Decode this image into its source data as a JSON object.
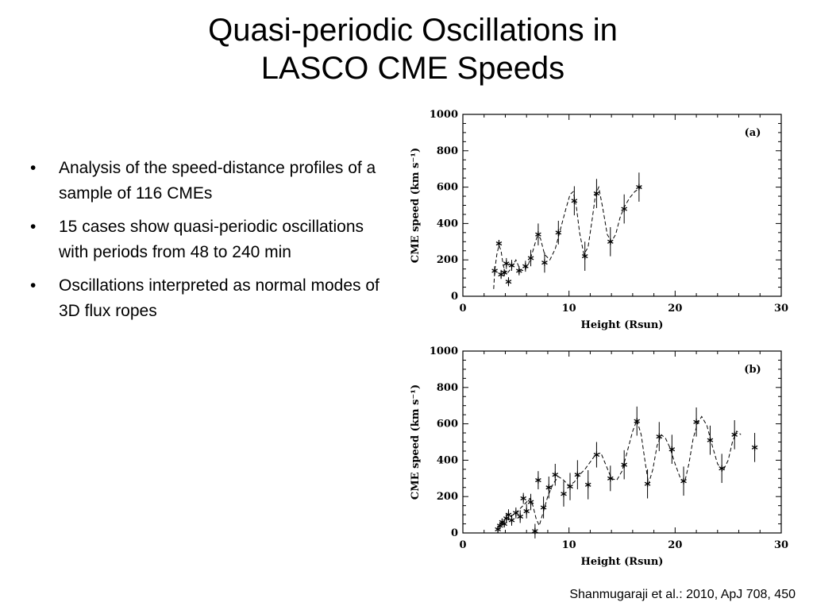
{
  "slide": {
    "title_line1": "Quasi-periodic Oscillations in",
    "title_line2": "LASCO CME Speeds",
    "bullets": [
      "Analysis of the speed-distance profiles of a sample of 116 CMEs",
      "15 cases show quasi-periodic oscillations with periods from 48 to 240 min",
      "Oscillations interpreted as normal modes of 3D flux ropes"
    ],
    "citation": "Shanmugaraji et al.: 2010, ApJ 708, 450"
  },
  "chart_data": [
    {
      "type": "scatter",
      "panel_label": "(a)",
      "xlabel": "Height (Rsun)",
      "ylabel": "CME speed (km s⁻¹)",
      "xlim": [
        0,
        30
      ],
      "ylim": [
        0,
        1000
      ],
      "xticks": [
        0,
        10,
        20,
        30
      ],
      "yticks": [
        0,
        200,
        400,
        600,
        800,
        1000
      ],
      "marker": "asterisk",
      "points": [
        {
          "x": 3.0,
          "y": 140,
          "err": 25
        },
        {
          "x": 3.4,
          "y": 290,
          "err": 20
        },
        {
          "x": 3.6,
          "y": 120,
          "err": 25
        },
        {
          "x": 3.9,
          "y": 130,
          "err": 20
        },
        {
          "x": 4.1,
          "y": 180,
          "err": 30
        },
        {
          "x": 4.3,
          "y": 80,
          "err": 25
        },
        {
          "x": 4.6,
          "y": 170,
          "err": 30
        },
        {
          "x": 5.3,
          "y": 140,
          "err": 25
        },
        {
          "x": 5.9,
          "y": 165,
          "err": 30
        },
        {
          "x": 6.4,
          "y": 210,
          "err": 45
        },
        {
          "x": 7.1,
          "y": 340,
          "err": 60
        },
        {
          "x": 7.7,
          "y": 185,
          "err": 55
        },
        {
          "x": 9.0,
          "y": 350,
          "err": 65
        },
        {
          "x": 10.5,
          "y": 525,
          "err": 80
        },
        {
          "x": 11.5,
          "y": 220,
          "err": 80
        },
        {
          "x": 12.6,
          "y": 565,
          "err": 80
        },
        {
          "x": 13.9,
          "y": 300,
          "err": 80
        },
        {
          "x": 15.2,
          "y": 480,
          "err": 80
        },
        {
          "x": 16.6,
          "y": 600,
          "err": 80
        }
      ],
      "fit_curve": [
        [
          2.9,
          40
        ],
        [
          3.0,
          140
        ],
        [
          3.2,
          230
        ],
        [
          3.4,
          280
        ],
        [
          3.6,
          250
        ],
        [
          3.8,
          170
        ],
        [
          4.1,
          120
        ],
        [
          4.5,
          150
        ],
        [
          5.0,
          200
        ],
        [
          5.4,
          145
        ],
        [
          5.8,
          140
        ],
        [
          6.2,
          180
        ],
        [
          6.6,
          250
        ],
        [
          7.0,
          330
        ],
        [
          7.3,
          320
        ],
        [
          7.7,
          230
        ],
        [
          8.2,
          200
        ],
        [
          8.7,
          260
        ],
        [
          9.2,
          370
        ],
        [
          9.7,
          480
        ],
        [
          10.1,
          560
        ],
        [
          10.4,
          575
        ],
        [
          10.7,
          490
        ],
        [
          11.0,
          350
        ],
        [
          11.4,
          230
        ],
        [
          11.8,
          270
        ],
        [
          12.2,
          430
        ],
        [
          12.5,
          560
        ],
        [
          12.8,
          600
        ],
        [
          13.2,
          480
        ],
        [
          13.6,
          340
        ],
        [
          14.0,
          300
        ],
        [
          14.4,
          340
        ],
        [
          14.8,
          430
        ],
        [
          15.2,
          490
        ],
        [
          15.7,
          540
        ],
        [
          16.2,
          575
        ],
        [
          16.8,
          600
        ]
      ]
    },
    {
      "type": "scatter",
      "panel_label": "(b)",
      "xlabel": "Height (Rsun)",
      "ylabel": "CME speed (km s⁻¹)",
      "xlim": [
        0,
        30
      ],
      "ylim": [
        0,
        1000
      ],
      "xticks": [
        0,
        10,
        20,
        30
      ],
      "yticks": [
        0,
        200,
        400,
        600,
        800,
        1000
      ],
      "marker": "asterisk",
      "points": [
        {
          "x": 3.3,
          "y": 20,
          "err": 20
        },
        {
          "x": 3.5,
          "y": 40,
          "err": 20
        },
        {
          "x": 3.7,
          "y": 60,
          "err": 20
        },
        {
          "x": 3.9,
          "y": 50,
          "err": 20
        },
        {
          "x": 4.1,
          "y": 80,
          "err": 25
        },
        {
          "x": 4.3,
          "y": 100,
          "err": 30
        },
        {
          "x": 4.6,
          "y": 70,
          "err": 30
        },
        {
          "x": 5.0,
          "y": 110,
          "err": 30
        },
        {
          "x": 5.4,
          "y": 90,
          "err": 35
        },
        {
          "x": 5.7,
          "y": 190,
          "err": 30
        },
        {
          "x": 6.0,
          "y": 120,
          "err": 40
        },
        {
          "x": 6.4,
          "y": 170,
          "err": 45
        },
        {
          "x": 6.8,
          "y": 10,
          "err": 40
        },
        {
          "x": 7.1,
          "y": 290,
          "err": 50
        },
        {
          "x": 7.6,
          "y": 140,
          "err": 60
        },
        {
          "x": 8.1,
          "y": 250,
          "err": 60
        },
        {
          "x": 8.7,
          "y": 320,
          "err": 60
        },
        {
          "x": 9.5,
          "y": 215,
          "err": 70
        },
        {
          "x": 10.1,
          "y": 255,
          "err": 75
        },
        {
          "x": 10.8,
          "y": 320,
          "err": 80
        },
        {
          "x": 11.8,
          "y": 265,
          "err": 80
        },
        {
          "x": 12.6,
          "y": 430,
          "err": 70
        },
        {
          "x": 13.9,
          "y": 300,
          "err": 70
        },
        {
          "x": 15.2,
          "y": 375,
          "err": 80
        },
        {
          "x": 16.4,
          "y": 615,
          "err": 80
        },
        {
          "x": 17.4,
          "y": 270,
          "err": 80
        },
        {
          "x": 18.5,
          "y": 530,
          "err": 80
        },
        {
          "x": 19.7,
          "y": 460,
          "err": 80
        },
        {
          "x": 20.8,
          "y": 285,
          "err": 80
        },
        {
          "x": 22.0,
          "y": 610,
          "err": 80
        },
        {
          "x": 23.3,
          "y": 510,
          "err": 80
        },
        {
          "x": 24.4,
          "y": 355,
          "err": 80
        },
        {
          "x": 25.6,
          "y": 540,
          "err": 80
        },
        {
          "x": 27.5,
          "y": 470,
          "err": 80
        }
      ],
      "fit_curve": [
        [
          3.2,
          20
        ],
        [
          3.6,
          50
        ],
        [
          4.0,
          80
        ],
        [
          4.5,
          90
        ],
        [
          5.0,
          110
        ],
        [
          5.5,
          140
        ],
        [
          6.0,
          170
        ],
        [
          6.3,
          190
        ],
        [
          6.6,
          150
        ],
        [
          6.9,
          80
        ],
        [
          7.2,
          40
        ],
        [
          7.6,
          120
        ],
        [
          8.0,
          200
        ],
        [
          8.5,
          270
        ],
        [
          9.0,
          310
        ],
        [
          9.5,
          290
        ],
        [
          10.0,
          260
        ],
        [
          10.5,
          280
        ],
        [
          11.0,
          320
        ],
        [
          11.5,
          350
        ],
        [
          12.0,
          390
        ],
        [
          12.5,
          430
        ],
        [
          13.0,
          440
        ],
        [
          13.5,
          370
        ],
        [
          14.0,
          300
        ],
        [
          14.5,
          290
        ],
        [
          15.0,
          340
        ],
        [
          15.5,
          450
        ],
        [
          16.0,
          560
        ],
        [
          16.4,
          620
        ],
        [
          16.8,
          540
        ],
        [
          17.2,
          380
        ],
        [
          17.5,
          270
        ],
        [
          17.9,
          350
        ],
        [
          18.3,
          480
        ],
        [
          18.7,
          540
        ],
        [
          19.1,
          520
        ],
        [
          19.5,
          470
        ],
        [
          20.0,
          380
        ],
        [
          20.5,
          300
        ],
        [
          20.9,
          280
        ],
        [
          21.3,
          380
        ],
        [
          21.7,
          520
        ],
        [
          22.1,
          600
        ],
        [
          22.5,
          640
        ],
        [
          23.0,
          590
        ],
        [
          23.5,
          480
        ],
        [
          24.0,
          380
        ],
        [
          24.5,
          340
        ],
        [
          25.0,
          400
        ],
        [
          25.4,
          500
        ],
        [
          25.8,
          560
        ],
        [
          26.2,
          540
        ]
      ]
    }
  ]
}
